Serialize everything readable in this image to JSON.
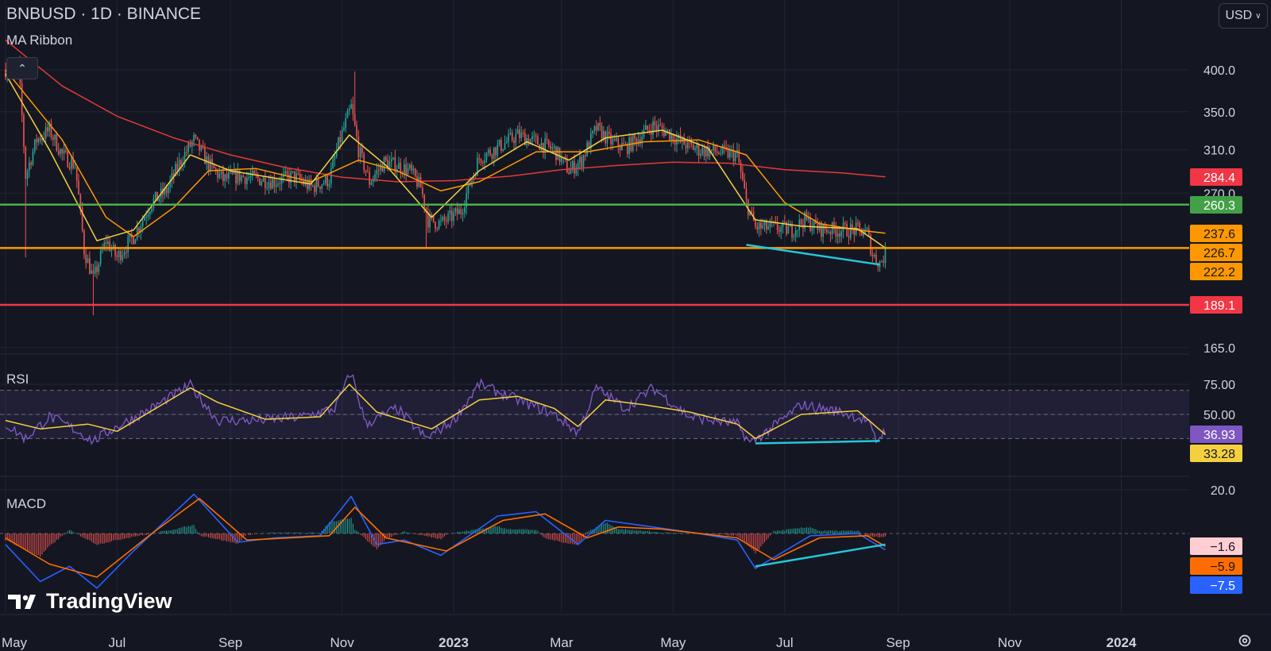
{
  "header": {
    "title": "BNBUSD · 1D · BINANCE",
    "ma_label": "MA Ribbon",
    "rsi_label": "RSI",
    "macd_label": "MACD",
    "currency": "USD",
    "logo_text": "TradingView"
  },
  "colors": {
    "background": "#141722",
    "grid": "#222634",
    "up": "#26a69a",
    "down": "#ef5350",
    "ma_red": "#e53935",
    "ma_orange": "#ff9800",
    "ma_yellow": "#f4d03f",
    "green_line": "#4caf50",
    "orange_line": "#ff9800",
    "red_line": "#f23645",
    "trend": "#26c6da",
    "rsi": "#7e57c2",
    "rsi_ma": "#f4d03f",
    "macd": "#2962ff",
    "signal": "#ff6d00",
    "hist_pos": "#26a69a",
    "hist_neg": "#ef5350"
  },
  "chart_data": [
    {
      "type": "candlestick",
      "title": "BNBUSD · 1D · BINANCE",
      "y_scale": "log",
      "y_ticks": [
        400.0,
        350.0,
        310.0,
        270.0,
        165.0
      ],
      "x_ticks": [
        {
          "date": "2022-05-01",
          "label": "May"
        },
        {
          "date": "2022-07-01",
          "label": "Jul"
        },
        {
          "date": "2022-09-01",
          "label": "Sep"
        },
        {
          "date": "2022-11-01",
          "label": "Nov"
        },
        {
          "date": "2023-01-01",
          "label": "2023"
        },
        {
          "date": "2023-03-01",
          "label": "Mar"
        },
        {
          "date": "2023-05-01",
          "label": "May"
        },
        {
          "date": "2023-07-01",
          "label": "Jul"
        },
        {
          "date": "2023-09-01",
          "label": "Sep"
        },
        {
          "date": "2023-11-01",
          "label": "Nov"
        },
        {
          "date": "2024-01-01",
          "label": "2024"
        }
      ],
      "price_close": [
        [
          "2022-05-01",
          400
        ],
        [
          "2022-05-08",
          405
        ],
        [
          "2022-05-12",
          285
        ],
        [
          "2022-05-18",
          320
        ],
        [
          "2022-05-25",
          330
        ],
        [
          "2022-06-01",
          305
        ],
        [
          "2022-06-08",
          295
        ],
        [
          "2022-06-13",
          225
        ],
        [
          "2022-06-18",
          205
        ],
        [
          "2022-06-25",
          232
        ],
        [
          "2022-07-01",
          220
        ],
        [
          "2022-07-10",
          235
        ],
        [
          "2022-07-20",
          262
        ],
        [
          "2022-07-28",
          272
        ],
        [
          "2022-08-05",
          300
        ],
        [
          "2022-08-12",
          320
        ],
        [
          "2022-08-20",
          296
        ],
        [
          "2022-08-28",
          282
        ],
        [
          "2022-09-05",
          285
        ],
        [
          "2022-09-15",
          283
        ],
        [
          "2022-09-25",
          280
        ],
        [
          "2022-10-05",
          285
        ],
        [
          "2022-10-15",
          275
        ],
        [
          "2022-10-25",
          282
        ],
        [
          "2022-10-30",
          315
        ],
        [
          "2022-11-06",
          355
        ],
        [
          "2022-11-10",
          310
        ],
        [
          "2022-11-16",
          280
        ],
        [
          "2022-11-24",
          298
        ],
        [
          "2022-12-01",
          295
        ],
        [
          "2022-12-08",
          290
        ],
        [
          "2022-12-14",
          275
        ],
        [
          "2022-12-18",
          248
        ],
        [
          "2022-12-25",
          245
        ],
        [
          "2023-01-05",
          255
        ],
        [
          "2023-01-15",
          302
        ],
        [
          "2023-01-25",
          312
        ],
        [
          "2023-02-05",
          325
        ],
        [
          "2023-02-15",
          318
        ],
        [
          "2023-02-25",
          310
        ],
        [
          "2023-03-05",
          290
        ],
        [
          "2023-03-12",
          300
        ],
        [
          "2023-03-20",
          332
        ],
        [
          "2023-03-28",
          318
        ],
        [
          "2023-04-05",
          312
        ],
        [
          "2023-04-12",
          322
        ],
        [
          "2023-04-20",
          335
        ],
        [
          "2023-04-28",
          328
        ],
        [
          "2023-05-05",
          318
        ],
        [
          "2023-05-15",
          310
        ],
        [
          "2023-05-25",
          308
        ],
        [
          "2023-06-05",
          305
        ],
        [
          "2023-06-10",
          262
        ],
        [
          "2023-06-15",
          242
        ],
        [
          "2023-06-25",
          242
        ],
        [
          "2023-07-05",
          240
        ],
        [
          "2023-07-12",
          248
        ],
        [
          "2023-07-20",
          241
        ],
        [
          "2023-07-30",
          240
        ],
        [
          "2023-08-10",
          240
        ],
        [
          "2023-08-15",
          238
        ],
        [
          "2023-08-18",
          222
        ],
        [
          "2023-08-22",
          216
        ],
        [
          "2023-08-25",
          222
        ]
      ],
      "price_high_events": [
        [
          "2022-11-08",
          398
        ],
        [
          "2022-06-18",
          183
        ],
        [
          "2022-05-12",
          220
        ],
        [
          "2022-12-17",
          226
        ]
      ],
      "ma_ribbon": {
        "red": [
          [
            "2022-05-01",
            440
          ],
          [
            "2022-06-01",
            380
          ],
          [
            "2022-07-01",
            345
          ],
          [
            "2022-08-01",
            322
          ],
          [
            "2022-09-01",
            305
          ],
          [
            "2022-10-01",
            293
          ],
          [
            "2022-11-01",
            284
          ],
          [
            "2022-12-01",
            280
          ],
          [
            "2023-01-01",
            281
          ],
          [
            "2023-02-01",
            285
          ],
          [
            "2023-03-01",
            291
          ],
          [
            "2023-04-01",
            295
          ],
          [
            "2023-05-01",
            298
          ],
          [
            "2023-06-01",
            297
          ],
          [
            "2023-07-01",
            291
          ],
          [
            "2023-08-01",
            288
          ],
          [
            "2023-08-25",
            284.4
          ]
        ],
        "orange": [
          [
            "2022-05-01",
            400
          ],
          [
            "2022-06-01",
            320
          ],
          [
            "2022-06-25",
            250
          ],
          [
            "2022-07-10",
            235
          ],
          [
            "2022-08-01",
            258
          ],
          [
            "2022-08-20",
            290
          ],
          [
            "2022-09-15",
            292
          ],
          [
            "2022-10-15",
            280
          ],
          [
            "2022-11-10",
            300
          ],
          [
            "2022-12-01",
            290
          ],
          [
            "2022-12-25",
            272
          ],
          [
            "2023-01-15",
            280
          ],
          [
            "2023-02-15",
            308
          ],
          [
            "2023-03-15",
            308
          ],
          [
            "2023-04-15",
            318
          ],
          [
            "2023-05-15",
            320
          ],
          [
            "2023-06-10",
            305
          ],
          [
            "2023-07-01",
            262
          ],
          [
            "2023-07-20",
            245
          ],
          [
            "2023-08-10",
            240
          ],
          [
            "2023-08-25",
            237.6
          ]
        ],
        "yellow": [
          [
            "2022-05-01",
            395
          ],
          [
            "2022-05-25",
            310
          ],
          [
            "2022-06-20",
            232
          ],
          [
            "2022-07-10",
            240
          ],
          [
            "2022-08-10",
            305
          ],
          [
            "2022-09-01",
            290
          ],
          [
            "2022-10-15",
            278
          ],
          [
            "2022-11-05",
            325
          ],
          [
            "2022-11-25",
            295
          ],
          [
            "2022-12-20",
            250
          ],
          [
            "2023-01-15",
            290
          ],
          [
            "2023-02-10",
            318
          ],
          [
            "2023-03-05",
            300
          ],
          [
            "2023-03-25",
            322
          ],
          [
            "2023-04-25",
            330
          ],
          [
            "2023-05-20",
            312
          ],
          [
            "2023-06-15",
            248
          ],
          [
            "2023-07-10",
            243
          ],
          [
            "2023-08-10",
            241
          ],
          [
            "2023-08-25",
            226.7
          ]
        ]
      },
      "horizontal_lines": [
        {
          "name": "resistance",
          "value": 260.3,
          "color": "#4caf50"
        },
        {
          "name": "support",
          "value": 226.7,
          "color": "#ff9800"
        },
        {
          "name": "low",
          "value": 189.1,
          "color": "#f23645"
        }
      ],
      "trendline": [
        [
          "2023-06-10",
          229
        ],
        [
          "2023-08-22",
          215
        ]
      ],
      "price_tags": [
        {
          "value": "284.4",
          "bg": "#f23645",
          "fg": "#ffffff"
        },
        {
          "value": "260.3",
          "bg": "#43a047",
          "fg": "#ffffff"
        },
        {
          "value": "237.6",
          "bg": "#ff9800",
          "fg": "#141722"
        },
        {
          "value": "226.7",
          "bg": "#ff9800",
          "fg": "#141722"
        },
        {
          "value": "222.2",
          "bg": "#ff9800",
          "fg": "#141722"
        },
        {
          "value": "189.1",
          "bg": "#f23645",
          "fg": "#ffffff"
        }
      ]
    },
    {
      "type": "line",
      "title": "RSI",
      "y_ticks": [
        75.0,
        50.0
      ],
      "bands": [
        70,
        50,
        30
      ],
      "rsi": [
        [
          "2022-05-01",
          42
        ],
        [
          "2022-05-12",
          30
        ],
        [
          "2022-05-25",
          48
        ],
        [
          "2022-06-05",
          40
        ],
        [
          "2022-06-18",
          28
        ],
        [
          "2022-07-01",
          40
        ],
        [
          "2022-07-20",
          55
        ],
        [
          "2022-08-10",
          74
        ],
        [
          "2022-08-25",
          45
        ],
        [
          "2022-09-15",
          45
        ],
        [
          "2022-10-10",
          48
        ],
        [
          "2022-10-28",
          55
        ],
        [
          "2022-11-06",
          85
        ],
        [
          "2022-11-14",
          42
        ],
        [
          "2022-12-01",
          55
        ],
        [
          "2022-12-17",
          30
        ],
        [
          "2023-01-01",
          45
        ],
        [
          "2023-01-15",
          75
        ],
        [
          "2023-02-05",
          62
        ],
        [
          "2023-02-25",
          50
        ],
        [
          "2023-03-10",
          35
        ],
        [
          "2023-03-20",
          72
        ],
        [
          "2023-04-05",
          55
        ],
        [
          "2023-04-20",
          72
        ],
        [
          "2023-05-10",
          48
        ],
        [
          "2023-06-05",
          42
        ],
        [
          "2023-06-12",
          26
        ],
        [
          "2023-06-25",
          40
        ],
        [
          "2023-07-10",
          58
        ],
        [
          "2023-08-01",
          52
        ],
        [
          "2023-08-15",
          45
        ],
        [
          "2023-08-20",
          28
        ],
        [
          "2023-08-25",
          36.93
        ]
      ],
      "rsi_ma": [
        [
          "2022-05-01",
          45
        ],
        [
          "2022-05-20",
          38
        ],
        [
          "2022-06-15",
          42
        ],
        [
          "2022-07-01",
          36
        ],
        [
          "2022-08-10",
          72
        ],
        [
          "2022-08-25",
          60
        ],
        [
          "2022-09-20",
          46
        ],
        [
          "2022-10-20",
          48
        ],
        [
          "2022-11-05",
          75
        ],
        [
          "2022-11-20",
          52
        ],
        [
          "2022-12-20",
          38
        ],
        [
          "2023-01-15",
          62
        ],
        [
          "2023-02-05",
          65
        ],
        [
          "2023-02-25",
          55
        ],
        [
          "2023-03-10",
          40
        ],
        [
          "2023-03-25",
          62
        ],
        [
          "2023-04-15",
          58
        ],
        [
          "2023-05-10",
          52
        ],
        [
          "2023-06-05",
          42
        ],
        [
          "2023-06-15",
          30
        ],
        [
          "2023-07-10",
          50
        ],
        [
          "2023-08-10",
          53
        ],
        [
          "2023-08-25",
          33.28
        ]
      ],
      "trendline": [
        [
          "2023-06-15",
          26
        ],
        [
          "2023-08-22",
          28
        ]
      ],
      "value_tags": [
        {
          "value": "36.93",
          "bg": "#7e57c2",
          "fg": "#ffffff"
        },
        {
          "value": "33.28",
          "bg": "#f4d03f",
          "fg": "#141722"
        }
      ]
    },
    {
      "type": "line",
      "title": "MACD",
      "y_ticks": [
        20.0
      ],
      "macd": [
        [
          "2022-05-01",
          -5
        ],
        [
          "2022-05-20",
          -22
        ],
        [
          "2022-06-05",
          -15
        ],
        [
          "2022-06-20",
          -25
        ],
        [
          "2022-07-10",
          -8
        ],
        [
          "2022-08-12",
          18
        ],
        [
          "2022-09-05",
          -4
        ],
        [
          "2022-09-25",
          -2
        ],
        [
          "2022-10-20",
          -1
        ],
        [
          "2022-11-06",
          17
        ],
        [
          "2022-11-20",
          -5
        ],
        [
          "2022-12-05",
          -3
        ],
        [
          "2022-12-25",
          -10
        ],
        [
          "2023-01-25",
          8
        ],
        [
          "2023-02-15",
          10
        ],
        [
          "2023-03-10",
          -5
        ],
        [
          "2023-03-25",
          6
        ],
        [
          "2023-04-20",
          3
        ],
        [
          "2023-05-15",
          0
        ],
        [
          "2023-06-05",
          -3
        ],
        [
          "2023-06-15",
          -16
        ],
        [
          "2023-07-15",
          -1
        ],
        [
          "2023-08-10",
          0
        ],
        [
          "2023-08-25",
          -7.5
        ]
      ],
      "signal": [
        [
          "2022-05-01",
          -2
        ],
        [
          "2022-05-25",
          -14
        ],
        [
          "2022-06-20",
          -20
        ],
        [
          "2022-07-20",
          0
        ],
        [
          "2022-08-15",
          16
        ],
        [
          "2022-09-10",
          -3
        ],
        [
          "2022-10-25",
          -1
        ],
        [
          "2022-11-08",
          12
        ],
        [
          "2022-11-25",
          -2
        ],
        [
          "2022-12-28",
          -8
        ],
        [
          "2023-01-28",
          6
        ],
        [
          "2023-02-20",
          9
        ],
        [
          "2023-03-15",
          -2
        ],
        [
          "2023-04-01",
          3
        ],
        [
          "2023-04-25",
          2
        ],
        [
          "2023-06-05",
          -2
        ],
        [
          "2023-06-25",
          -12
        ],
        [
          "2023-07-20",
          -2
        ],
        [
          "2023-08-15",
          -1
        ],
        [
          "2023-08-25",
          -5.9
        ]
      ],
      "trendline": [
        [
          "2023-06-15",
          -15
        ],
        [
          "2023-08-25",
          -5
        ]
      ],
      "value_tags": [
        {
          "value": "−1.6",
          "bg": "#ffcdd2",
          "fg": "#141722"
        },
        {
          "value": "−5.9",
          "bg": "#ff6d00",
          "fg": "#141722"
        },
        {
          "value": "−7.5",
          "bg": "#2962ff",
          "fg": "#ffffff"
        }
      ]
    }
  ]
}
